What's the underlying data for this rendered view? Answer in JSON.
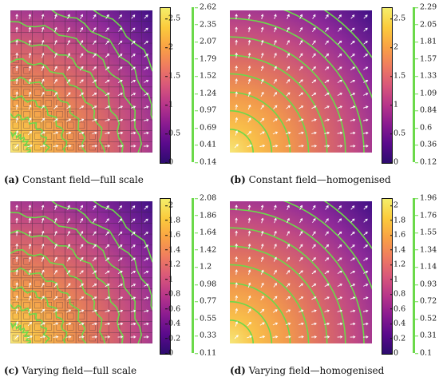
{
  "panels": [
    {
      "id": "a",
      "caption_tag": "(a)",
      "caption_text": " Constant field—full scale",
      "variant": "full",
      "colorbar_ticks": [
        "2.5",
        "2",
        "1.5",
        "1",
        "0.5",
        "0"
      ],
      "colorbar_max": 2.7,
      "contour_ticks": [
        "2.62",
        "2.35",
        "2.07",
        "1.79",
        "1.52",
        "1.24",
        "0.97",
        "0.69",
        "0.41",
        "0.14"
      ]
    },
    {
      "id": "b",
      "caption_tag": "(b)",
      "caption_text": " Constant field—homogenised",
      "variant": "homog",
      "colorbar_ticks": [
        "2.5",
        "2",
        "1.5",
        "1",
        "0.5",
        "0"
      ],
      "colorbar_max": 2.7,
      "contour_ticks": [
        "2.29",
        "2.05",
        "1.81",
        "1.57",
        "1.33",
        "1.09",
        "0.84",
        "0.6",
        "0.36",
        "0.12"
      ]
    },
    {
      "id": "c",
      "caption_tag": "(c)",
      "caption_text": " Varying field—full scale",
      "variant": "full",
      "colorbar_ticks": [
        "2",
        "1.8",
        "1.6",
        "1.4",
        "1.2",
        "1",
        "0.8",
        "0.6",
        "0.4",
        "0.2",
        "0"
      ],
      "colorbar_max": 2.1,
      "contour_ticks": [
        "2.08",
        "1.86",
        "1.64",
        "1.42",
        "1.2",
        "0.98",
        "0.77",
        "0.55",
        "0.33",
        "0.11"
      ]
    },
    {
      "id": "d",
      "caption_tag": "(d)",
      "caption_text": " Varying field—homogenised",
      "variant": "homog",
      "colorbar_ticks": [
        "2",
        "1.8",
        "1.6",
        "1.4",
        "1.2",
        "1",
        "0.8",
        "0.6",
        "0.4",
        "0.2",
        "0"
      ],
      "colorbar_max": 2.1,
      "contour_ticks": [
        "1.96",
        "1.76",
        "1.55",
        "1.34",
        "1.14",
        "0.93",
        "0.72",
        "0.52",
        "0.31",
        "0.1"
      ]
    }
  ],
  "colors": {
    "contour": "#6bd94a",
    "arrow": "#ffffff",
    "cell_line": "#3a2a40"
  }
}
